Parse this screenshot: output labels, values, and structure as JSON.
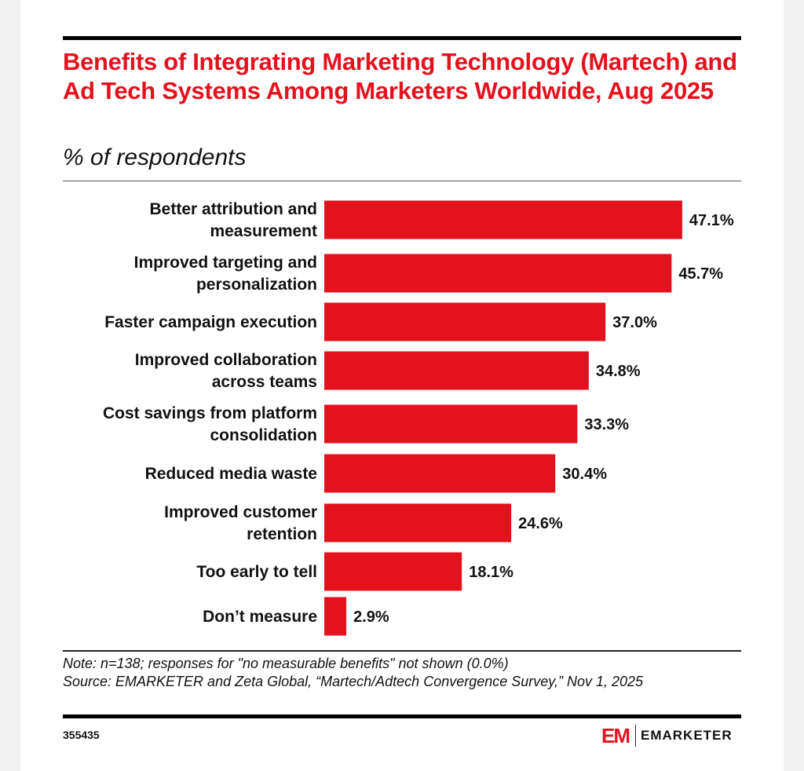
{
  "header": {
    "title": "Benefits of Integrating Marketing Technology (Martech) and Ad Tech Systems Among Marketers Worldwide, Aug 2025",
    "subtitle": "% of respondents"
  },
  "footer": {
    "note": "Note: n=138; responses for \"no measurable benefits\" not shown (0.0%)",
    "source": "Source: EMARKETER and Zeta Global, “Martech/Adtech Convergence Survey,” Nov 1, 2025",
    "chart_id": "355435",
    "logo_mark": "EM",
    "logo_text": "EMARKETER"
  },
  "colors": {
    "bar": "#e3121d",
    "title": "#e3121d"
  },
  "chart_data": {
    "type": "bar",
    "orientation": "horizontal",
    "title": "Benefits of Integrating Marketing Technology (Martech) and Ad Tech Systems Among Marketers Worldwide, Aug 2025",
    "subtitle": "% of respondents",
    "xlabel": "",
    "ylabel": "",
    "unit": "%",
    "grid": false,
    "legend": "none",
    "xlim": [
      0,
      50
    ],
    "categories": [
      [
        "Better attribution and",
        "measurement"
      ],
      [
        "Improved targeting and",
        "personalization"
      ],
      [
        "Faster campaign execution"
      ],
      [
        "Improved collaboration",
        "across teams"
      ],
      [
        "Cost savings from platform",
        "consolidation"
      ],
      [
        "Reduced media waste"
      ],
      [
        "Improved customer",
        "retention"
      ],
      [
        "Too early to tell"
      ],
      [
        "Don’t measure"
      ]
    ],
    "values": [
      47.1,
      45.7,
      37.0,
      34.8,
      33.3,
      30.4,
      24.6,
      18.1,
      2.9
    ],
    "value_labels": [
      "47.1%",
      "45.7%",
      "37.0%",
      "34.8%",
      "33.3%",
      "30.4%",
      "24.6%",
      "18.1%",
      "2.9%"
    ]
  }
}
